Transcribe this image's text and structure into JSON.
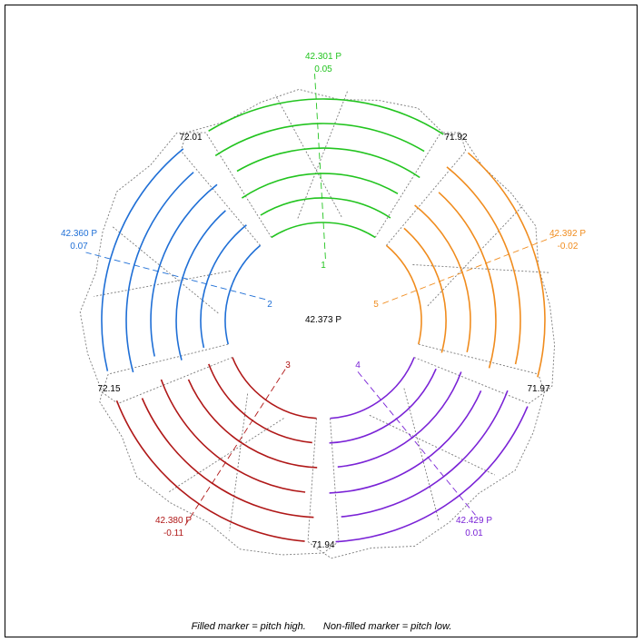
{
  "center_label": "42.373 P",
  "legend": {
    "filled": "Filled marker = pitch high.",
    "nonfilled": "Non-filled marker = pitch low."
  },
  "sectors": [
    {
      "id": "1",
      "color": "#22c41f",
      "pitch_label": "42.301 P",
      "delta_label": "0.05",
      "outer_label": "72.01"
    },
    {
      "id": "5",
      "color": "#f08c1e",
      "pitch_label": "42.392 P",
      "delta_label": "-0.02",
      "outer_label": "71.92"
    },
    {
      "id": "4",
      "color": "#7a23d6",
      "pitch_label": "42.429 P",
      "delta_label": "0.01",
      "outer_label": "71.97"
    },
    {
      "id": "3",
      "color": "#b01818",
      "pitch_label": "42.380 P",
      "delta_label": "-0.11",
      "outer_label": "71.94"
    },
    {
      "id": "2",
      "color": "#1f6fd6",
      "pitch_label": "42.360 P",
      "delta_label": "0.07",
      "outer_label": "72.15"
    }
  ]
}
